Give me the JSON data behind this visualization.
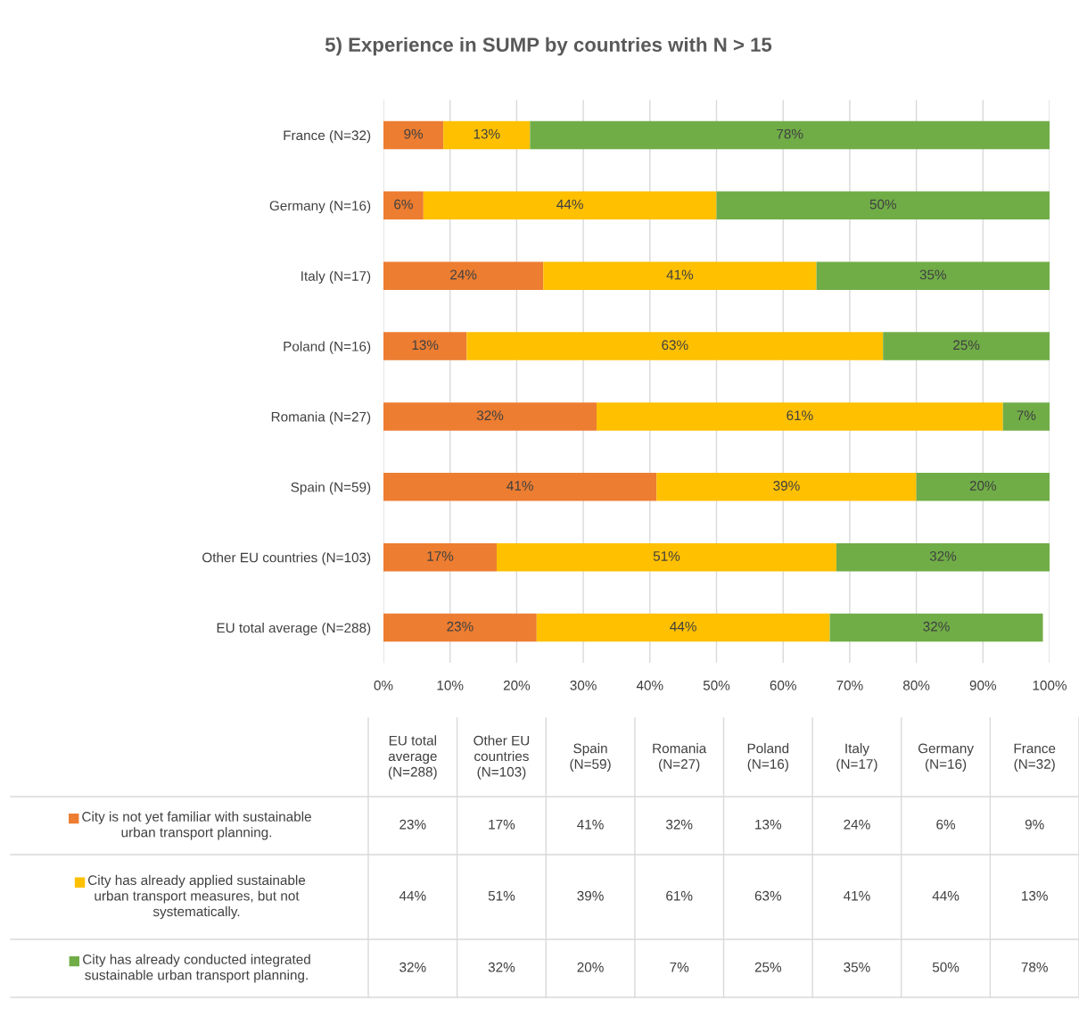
{
  "chart_data": {
    "type": "bar",
    "orientation": "horizontal",
    "stacked": true,
    "title": "5) Experience in SUMP by countries with N > 15",
    "categories": [
      "France (N=32)",
      "Germany (N=16)",
      "Italy (N=17)",
      "Poland (N=16)",
      "Romania (N=27)",
      "Spain (N=59)",
      "Other EU countries (N=103)",
      "EU total average (N=288)"
    ],
    "series": [
      {
        "name": "City is not yet familiar with sustainable urban transport planning.",
        "color": "#ed7d31",
        "values": [
          9,
          6,
          24,
          12.5,
          32,
          41,
          17,
          23
        ],
        "value_labels": [
          "9%",
          "6%",
          "24%",
          "13%",
          "32%",
          "41%",
          "17%",
          "23%"
        ]
      },
      {
        "name": "City has already applied sustainable urban transport measures, but not systematically.",
        "color": "#ffc000",
        "values": [
          13,
          44,
          41,
          62.5,
          61,
          39,
          51,
          44
        ],
        "value_labels": [
          "13%",
          "44%",
          "41%",
          "63%",
          "61%",
          "39%",
          "51%",
          "44%"
        ]
      },
      {
        "name": "City has already conducted integrated sustainable urban transport planning.",
        "color": "#70ad47",
        "values": [
          78,
          50,
          35,
          25,
          7,
          20,
          32,
          32
        ],
        "value_labels": [
          "78%",
          "50%",
          "35%",
          "25%",
          "7%",
          "20%",
          "32%",
          "32%"
        ]
      }
    ],
    "xlim": [
      0,
      100
    ],
    "xticks": [
      {
        "value": 0,
        "label": "0%"
      },
      {
        "value": 10,
        "label": "10%"
      },
      {
        "value": 20,
        "label": "20%"
      },
      {
        "value": 30,
        "label": "30%"
      },
      {
        "value": 40,
        "label": "40%"
      },
      {
        "value": 50,
        "label": "50%"
      },
      {
        "value": 60,
        "label": "60%"
      },
      {
        "value": 70,
        "label": "70%"
      },
      {
        "value": 80,
        "label": "80%"
      },
      {
        "value": 90,
        "label": "90%"
      },
      {
        "value": 100,
        "label": "100%"
      }
    ],
    "grid": "x",
    "legend": "bottom"
  }
}
